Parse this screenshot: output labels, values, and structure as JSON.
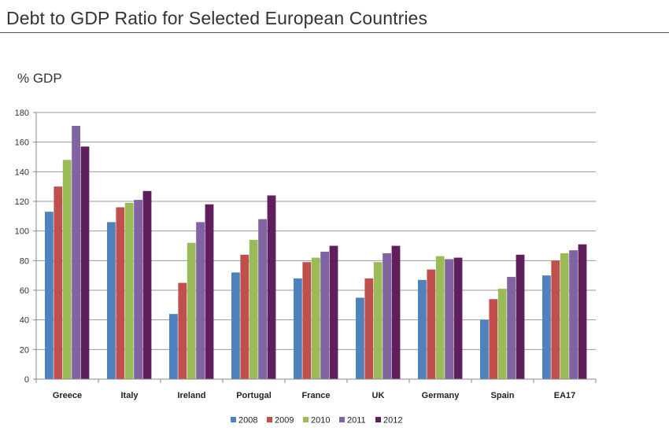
{
  "title": "Debt to GDP Ratio for Selected European Countries",
  "y_unit_label": "% GDP",
  "chart_data": {
    "type": "bar",
    "title": "Debt to GDP Ratio for Selected European Countries",
    "ylabel": "% GDP",
    "xlabel": "",
    "ylim": [
      0,
      180
    ],
    "yticks": [
      0,
      20,
      40,
      60,
      80,
      100,
      120,
      140,
      160,
      180
    ],
    "grid": true,
    "legend_position": "bottom",
    "categories": [
      "Greece",
      "Italy",
      "Ireland",
      "Portugal",
      "France",
      "UK",
      "Germany",
      "Spain",
      "EA17"
    ],
    "series": [
      {
        "name": "2008",
        "color": "#4f81bd",
        "values": [
          113,
          106,
          44,
          72,
          68,
          55,
          67,
          40,
          70
        ]
      },
      {
        "name": "2009",
        "color": "#c0504d",
        "values": [
          130,
          116,
          65,
          84,
          79,
          68,
          74,
          54,
          80
        ]
      },
      {
        "name": "2010",
        "color": "#9bbb59",
        "values": [
          148,
          119,
          92,
          94,
          82,
          79,
          83,
          61,
          85
        ]
      },
      {
        "name": "2011",
        "color": "#8064a2",
        "values": [
          171,
          121,
          106,
          108,
          86,
          85,
          81,
          69,
          87
        ]
      },
      {
        "name": "2012",
        "color": "#5e1f5c",
        "values": [
          157,
          127,
          118,
          124,
          90,
          90,
          82,
          84,
          91
        ]
      }
    ]
  }
}
